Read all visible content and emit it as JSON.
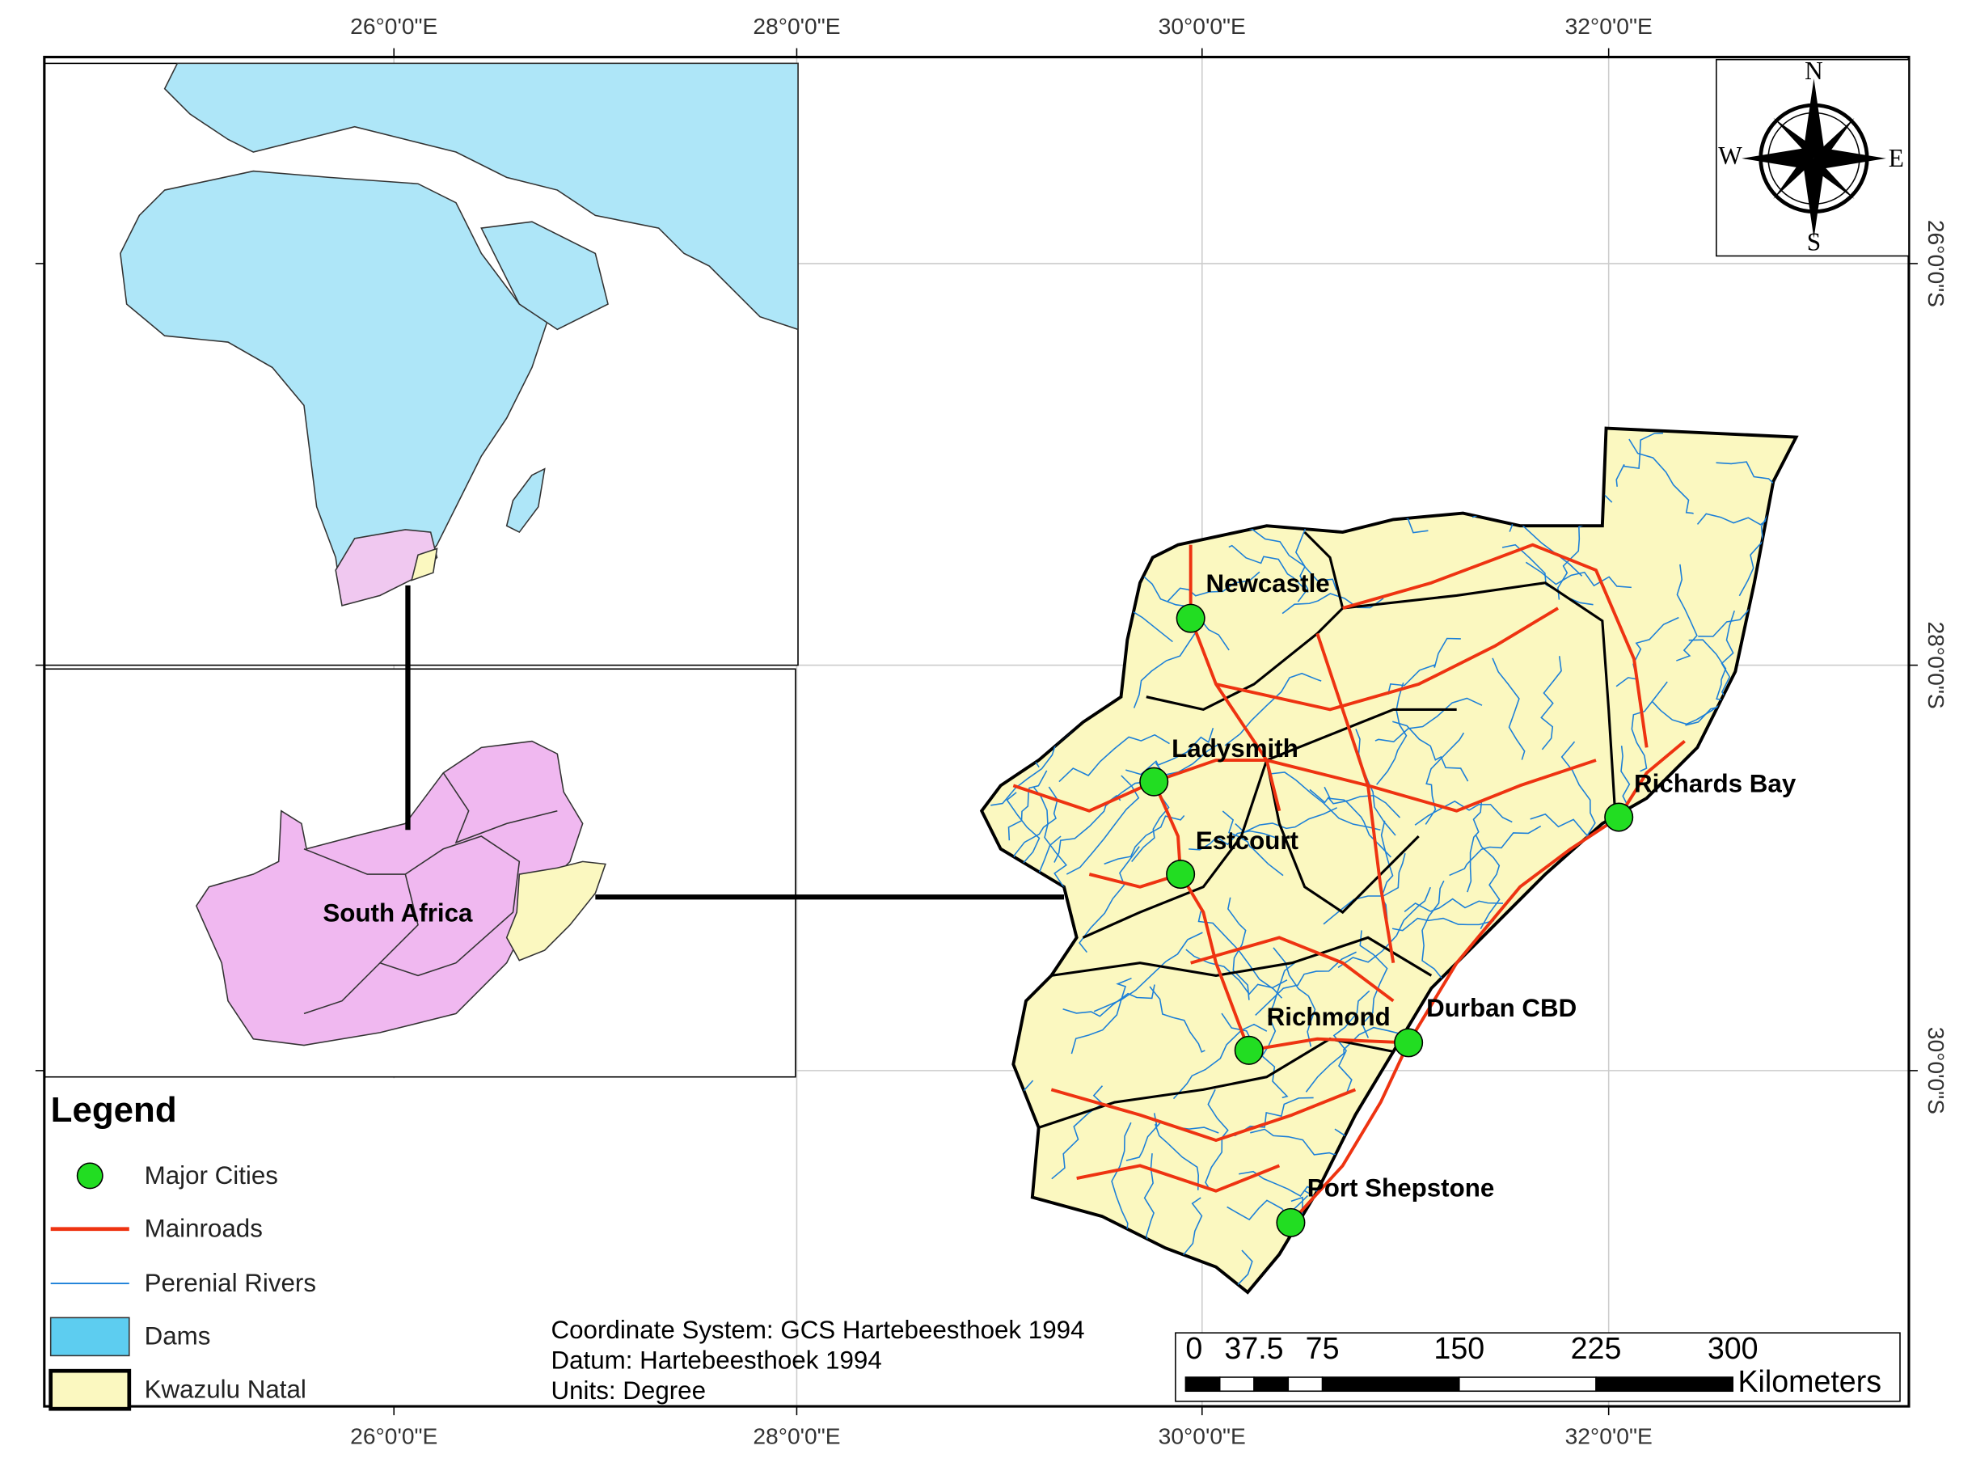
{
  "graticule": {
    "top": [
      "26°0'0\"E",
      "28°0'0\"E",
      "30°0'0\"E",
      "32°0'0\"E"
    ],
    "bottom": [
      "26°0'0\"E",
      "28°0'0\"E",
      "30°0'0\"E",
      "32°0'0\"E"
    ],
    "right": [
      "26°0'0\"S",
      "28°0'0\"S",
      "30°0'0\"S"
    ]
  },
  "compass": {
    "n": "N",
    "e": "E",
    "s": "S",
    "w": "W"
  },
  "inset": {
    "country_label": "South Africa"
  },
  "cities": [
    {
      "label": "Newcastle"
    },
    {
      "label": "Ladysmith"
    },
    {
      "label": "Estcourt"
    },
    {
      "label": "Richards Bay"
    },
    {
      "label": "Richmond"
    },
    {
      "label": "Durban CBD"
    },
    {
      "label": "Port Shepstone"
    }
  ],
  "legend": {
    "title": "Legend",
    "items": [
      {
        "label": "Major Cities"
      },
      {
        "label": "Mainroads"
      },
      {
        "label": "Perenial Rivers"
      },
      {
        "label": "Dams"
      },
      {
        "label": "Kwazulu Natal"
      }
    ]
  },
  "info": [
    "Coordinate System: GCS Hartebeesthoek 1994",
    "Datum: Hartebeesthoek 1994",
    "Units: Degree"
  ],
  "scale_bar": {
    "ticks": [
      0,
      37.5,
      75,
      150,
      225,
      300
    ],
    "unit": "Kilometers"
  }
}
